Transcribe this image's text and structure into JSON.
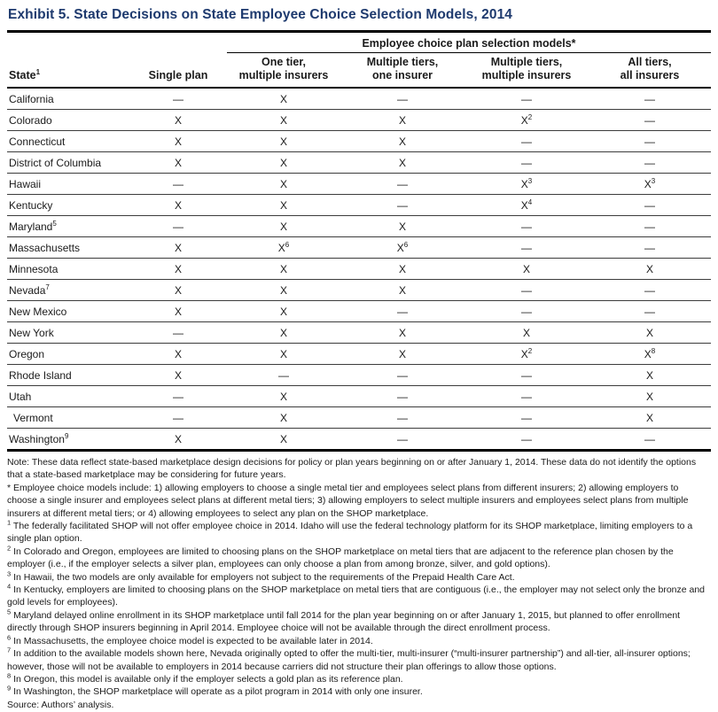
{
  "title": "Exhibit 5. State Decisions on State Employee Choice Selection Models, 2014",
  "colors": {
    "title_blue": "#1e3a6e",
    "text": "#1a1a1a",
    "rule": "#000000"
  },
  "table": {
    "span_header": "Employee choice plan selection models*",
    "columns": [
      {
        "line1": "State^1",
        "line2": ""
      },
      {
        "line1": "Single plan",
        "line2": ""
      },
      {
        "line1": "One tier,",
        "line2": "multiple insurers"
      },
      {
        "line1": "Multiple tiers,",
        "line2": "one insurer"
      },
      {
        "line1": "Multiple tiers,",
        "line2": "multiple insurers"
      },
      {
        "line1": "All tiers,",
        "line2": "all insurers"
      }
    ],
    "rows": [
      {
        "state": "California",
        "cells": [
          "—",
          "X",
          "—",
          "—",
          "—"
        ]
      },
      {
        "state": "Colorado",
        "cells": [
          "X",
          "X",
          "X",
          "X^2",
          "—"
        ]
      },
      {
        "state": "Connecticut",
        "cells": [
          "X",
          "X",
          "X",
          "—",
          "—"
        ]
      },
      {
        "state": "District of Columbia",
        "cells": [
          "X",
          "X",
          "X",
          "—",
          "—"
        ]
      },
      {
        "state": "Hawaii",
        "cells": [
          "—",
          "X",
          "—",
          "X^3",
          "X^3"
        ]
      },
      {
        "state": "Kentucky",
        "cells": [
          "X",
          "X",
          "—",
          "X^4",
          "—"
        ]
      },
      {
        "state": "Maryland^5",
        "cells": [
          "—",
          "X",
          "X",
          "—",
          "—"
        ]
      },
      {
        "state": "Massachusetts",
        "cells": [
          "X",
          "X^6",
          "X^6",
          "—",
          "—"
        ]
      },
      {
        "state": "Minnesota",
        "cells": [
          "X",
          "X",
          "X",
          "X",
          "X"
        ]
      },
      {
        "state": "Nevada^7",
        "cells": [
          "X",
          "X",
          "X",
          "—",
          "—"
        ]
      },
      {
        "state": "New Mexico",
        "cells": [
          "X",
          "X",
          "—",
          "—",
          "—"
        ]
      },
      {
        "state": "New York",
        "cells": [
          "—",
          "X",
          "X",
          "X",
          "X"
        ]
      },
      {
        "state": "Oregon",
        "cells": [
          "X",
          "X",
          "X",
          "X^2",
          "X^8"
        ]
      },
      {
        "state": "Rhode Island",
        "cells": [
          "X",
          "—",
          "—",
          "—",
          "X"
        ]
      },
      {
        "state": "Utah",
        "cells": [
          "—",
          "X",
          "—",
          "—",
          "X"
        ]
      },
      {
        "state": "Vermont",
        "indent": true,
        "cells": [
          "—",
          "X",
          "—",
          "—",
          "X"
        ]
      },
      {
        "state": "Washington^9",
        "cells": [
          "X",
          "X",
          "—",
          "—",
          "—"
        ]
      }
    ]
  },
  "notes": [
    {
      "text": "Note: These data reflect state-based marketplace design decisions for policy or plan years beginning on or after January 1, 2014. These data do not identify the options that a state-based marketplace may be considering for future years."
    },
    {
      "text": "* Employee choice models include: 1) allowing employers to choose a single metal tier and employees select plans from different insurers; 2) allowing employers to choose a single insurer and employees select plans at different metal tiers; 3) allowing employers to select multiple insurers and employees select plans from multiple insurers at different metal tiers; or 4) allowing employees to select any plan on the SHOP marketplace."
    },
    {
      "sup": "1",
      "text": "The federally facilitated SHOP will not offer employee choice in 2014. Idaho will use the federal technology platform for its SHOP marketplace, limiting employers to a single plan option."
    },
    {
      "sup": "2",
      "text": "In Colorado and Oregon, employees are limited to choosing plans on the SHOP marketplace on metal tiers that are adjacent to the reference plan chosen by the employer (i.e., if the employer selects a silver plan, employees can only choose a plan from among bronze, silver, and gold options)."
    },
    {
      "sup": "3",
      "text": "In Hawaii, the two models are only available for employers not subject to the requirements of the Prepaid Health Care Act."
    },
    {
      "sup": "4",
      "text": "In Kentucky, employers are limited to choosing plans on the SHOP marketplace on metal tiers that are contiguous (i.e., the employer may not select only the bronze and gold levels for employees)."
    },
    {
      "sup": "5",
      "text": "Maryland delayed online enrollment in its SHOP marketplace until fall 2014 for the plan year beginning on or after January 1, 2015, but planned to offer enrollment directly through SHOP insurers beginning in April 2014. Employee choice will not be available through the direct enrollment process."
    },
    {
      "sup": "6",
      "text": "In Massachusetts, the employee choice model is expected to be available later in 2014."
    },
    {
      "sup": "7",
      "text": "In addition to the available models shown here, Nevada originally opted to offer the multi-tier, multi-insurer (“multi-insurer partnership”) and all-tier, all-insurer options; however, those will not be available to employers in 2014 because carriers did not structure their plan offerings to allow those options."
    },
    {
      "sup": "8",
      "text": "In Oregon, this model is available only if the employer selects a gold plan as its reference plan."
    },
    {
      "sup": "9",
      "text": "In Washington, the SHOP marketplace will operate as a pilot program in 2014 with only one insurer."
    },
    {
      "text": "Source: Authors’ analysis."
    }
  ]
}
